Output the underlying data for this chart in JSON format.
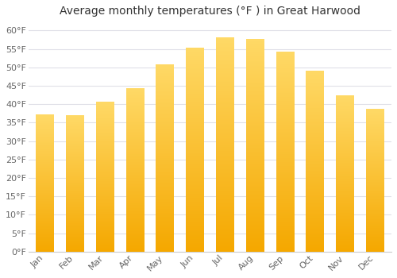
{
  "title": "Average monthly temperatures (°F ) in Great Harwood",
  "months": [
    "Jan",
    "Feb",
    "Mar",
    "Apr",
    "May",
    "Jun",
    "Jul",
    "Aug",
    "Sep",
    "Oct",
    "Nov",
    "Dec"
  ],
  "values": [
    37.2,
    37.0,
    40.7,
    44.2,
    50.7,
    55.2,
    58.1,
    57.7,
    54.1,
    49.0,
    42.3,
    38.7
  ],
  "bar_color_bottom": "#F5A800",
  "bar_color_top": "#FFD966",
  "background_color": "#FFFFFF",
  "plot_bg_color": "#FFFFFF",
  "grid_color": "#E0E0E8",
  "text_color": "#666666",
  "title_color": "#333333",
  "spine_color": "#CCCCCC",
  "ylim": [
    0,
    62
  ],
  "ytick_values": [
    0,
    5,
    10,
    15,
    20,
    25,
    30,
    35,
    40,
    45,
    50,
    55,
    60
  ],
  "title_fontsize": 10,
  "tick_fontsize": 8,
  "bar_width": 0.6
}
